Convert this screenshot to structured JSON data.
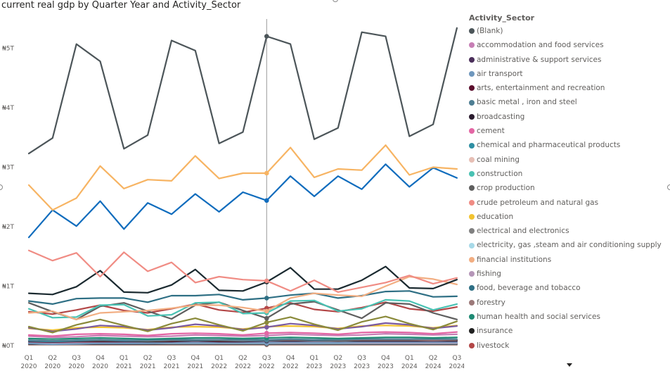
{
  "chart_data": {
    "type": "line",
    "title": "current real gdp by Quarter Year and Activity_Sector",
    "legend_title": "Activity_Sector",
    "legend_position": "right",
    "grid": false,
    "ylim": [
      0,
      5.5
    ],
    "y_ticks": [
      {
        "value": 0,
        "label": "₦0T"
      },
      {
        "value": 1,
        "label": "₦1T"
      },
      {
        "value": 2,
        "label": "₦2T"
      },
      {
        "value": 3,
        "label": "₦3T"
      },
      {
        "value": 4,
        "label": "₦4T"
      },
      {
        "value": 5,
        "label": "₦5T"
      }
    ],
    "categories": [
      {
        "q": "Q1",
        "y": "2020"
      },
      {
        "q": "Q2",
        "y": "2020"
      },
      {
        "q": "Q3",
        "y": "2020"
      },
      {
        "q": "Q4",
        "y": "2020"
      },
      {
        "q": "Q1",
        "y": "2021"
      },
      {
        "q": "Q2",
        "y": "2021"
      },
      {
        "q": "Q3",
        "y": "2021"
      },
      {
        "q": "Q4",
        "y": "2021"
      },
      {
        "q": "Q1",
        "y": "2022"
      },
      {
        "q": "Q2",
        "y": "2022"
      },
      {
        "q": "Q3",
        "y": "2022"
      },
      {
        "q": "Q4",
        "y": "2022"
      },
      {
        "q": "Q1",
        "y": "2023"
      },
      {
        "q": "Q2",
        "y": "2023"
      },
      {
        "q": "Q3",
        "y": "2023"
      },
      {
        "q": "Q4",
        "y": "2023"
      },
      {
        "q": "Q1",
        "y": "2024"
      },
      {
        "q": "Q2",
        "y": "2024"
      },
      {
        "q": "Q3",
        "y": "2024"
      }
    ],
    "highlight_index": 10,
    "series": [
      {
        "name": "(Blank)",
        "color": "#4C5559",
        "values": [
          3.23,
          3.49,
          5.07,
          4.78,
          3.31,
          3.54,
          5.13,
          4.96,
          3.4,
          3.59,
          5.2,
          5.07,
          3.47,
          3.66,
          5.27,
          5.2,
          3.52,
          3.72,
          5.34
        ]
      },
      {
        "name": "accommodation and food services",
        "color": "#C77EB5",
        "values": [
          0.16,
          0.14,
          0.15,
          0.17,
          0.16,
          0.15,
          0.16,
          0.18,
          0.17,
          0.16,
          0.17,
          0.19,
          0.18,
          0.17,
          0.18,
          0.2,
          0.19,
          0.18,
          0.19
        ]
      },
      {
        "name": "administrative & support services",
        "color": "#4B2F5A",
        "values": [
          0.05,
          0.05,
          0.05,
          0.05,
          0.05,
          0.05,
          0.05,
          0.05,
          0.05,
          0.05,
          0.05,
          0.05,
          0.05,
          0.05,
          0.05,
          0.05,
          0.05,
          0.05,
          0.05
        ]
      },
      {
        "name": "air transport",
        "color": "#6F97BD",
        "values": [
          0.04,
          0.02,
          0.03,
          0.04,
          0.04,
          0.04,
          0.05,
          0.05,
          0.05,
          0.05,
          0.05,
          0.06,
          0.05,
          0.05,
          0.06,
          0.06,
          0.06,
          0.06,
          0.06
        ]
      },
      {
        "name": "arts, entertainment and recreation",
        "color": "#5B0E2D",
        "values": [
          0.07,
          0.06,
          0.07,
          0.07,
          0.07,
          0.07,
          0.07,
          0.08,
          0.07,
          0.07,
          0.08,
          0.08,
          0.08,
          0.08,
          0.08,
          0.08,
          0.08,
          0.08,
          0.08
        ]
      },
      {
        "name": "basic metal , iron and steel",
        "color": "#4E7E93",
        "values": [
          0.09,
          0.08,
          0.09,
          0.1,
          0.09,
          0.09,
          0.1,
          0.1,
          0.1,
          0.1,
          0.1,
          0.11,
          0.1,
          0.1,
          0.11,
          0.11,
          0.11,
          0.11,
          0.11
        ]
      },
      {
        "name": "broadcasting",
        "color": "#2A1C2E",
        "values": [
          0.03,
          0.03,
          0.03,
          0.03,
          0.03,
          0.03,
          0.03,
          0.03,
          0.03,
          0.03,
          0.03,
          0.03,
          0.03,
          0.03,
          0.03,
          0.03,
          0.03,
          0.03,
          0.03
        ]
      },
      {
        "name": "cement",
        "color": "#E366A4",
        "values": [
          0.18,
          0.16,
          0.19,
          0.2,
          0.19,
          0.17,
          0.2,
          0.21,
          0.2,
          0.18,
          0.21,
          0.22,
          0.21,
          0.19,
          0.22,
          0.23,
          0.22,
          0.2,
          0.23
        ]
      },
      {
        "name": "chemical and  pharmaceutical products",
        "color": "#2E8FA3",
        "values": [
          0.08,
          0.07,
          0.08,
          0.09,
          0.08,
          0.08,
          0.09,
          0.09,
          0.09,
          0.08,
          0.09,
          0.1,
          0.09,
          0.09,
          0.1,
          0.1,
          0.1,
          0.09,
          0.1
        ]
      },
      {
        "name": "coal mining",
        "color": "#E7BFB5",
        "values": [
          0.01,
          0.01,
          0.01,
          0.01,
          0.01,
          0.01,
          0.01,
          0.01,
          0.01,
          0.01,
          0.01,
          0.01,
          0.01,
          0.01,
          0.01,
          0.01,
          0.01,
          0.01,
          0.01
        ]
      },
      {
        "name": "construction",
        "color": "#49C2B3",
        "values": [
          0.62,
          0.47,
          0.48,
          0.68,
          0.69,
          0.5,
          0.52,
          0.72,
          0.73,
          0.54,
          0.55,
          0.75,
          0.76,
          0.58,
          0.62,
          0.77,
          0.75,
          0.6,
          0.7
        ]
      },
      {
        "name": "crop production",
        "color": "#5E5E5E",
        "values": [
          0.72,
          0.57,
          0.44,
          0.66,
          0.72,
          0.58,
          0.45,
          0.68,
          0.73,
          0.59,
          0.46,
          0.7,
          0.74,
          0.6,
          0.46,
          0.72,
          0.7,
          0.55,
          0.44
        ]
      },
      {
        "name": "crude petroleum and natural gas",
        "color": "#F08C84",
        "values": [
          1.6,
          1.43,
          1.56,
          1.16,
          1.57,
          1.25,
          1.4,
          1.06,
          1.16,
          1.11,
          1.09,
          0.92,
          1.1,
          0.9,
          0.98,
          1.06,
          1.18,
          1.04,
          1.14
        ]
      },
      {
        "name": "education",
        "color": "#F2C330",
        "values": [
          0.29,
          0.26,
          0.3,
          0.31,
          0.3,
          0.27,
          0.31,
          0.32,
          0.31,
          0.28,
          0.32,
          0.33,
          0.32,
          0.29,
          0.33,
          0.34,
          0.33,
          0.3,
          0.34
        ]
      },
      {
        "name": "electrical and electronics",
        "color": "#808080",
        "values": [
          0.02,
          0.02,
          0.02,
          0.02,
          0.02,
          0.02,
          0.02,
          0.02,
          0.02,
          0.02,
          0.02,
          0.02,
          0.02,
          0.02,
          0.02,
          0.02,
          0.02,
          0.02,
          0.02
        ]
      },
      {
        "name": "electricity, gas ,steam and air conditioning supply",
        "color": "#A7D9E8",
        "values": [
          0.04,
          0.04,
          0.04,
          0.04,
          0.04,
          0.04,
          0.04,
          0.04,
          0.04,
          0.04,
          0.04,
          0.04,
          0.04,
          0.04,
          0.04,
          0.04,
          0.04,
          0.04,
          0.04
        ]
      },
      {
        "name": "financial institutions",
        "color": "#F2AE82",
        "values": [
          0.55,
          0.58,
          0.44,
          0.55,
          0.57,
          0.59,
          0.63,
          0.68,
          0.68,
          0.64,
          0.58,
          0.8,
          0.88,
          0.85,
          0.83,
          1.0,
          1.16,
          1.12,
          1.03
        ]
      },
      {
        "name": "fishing",
        "color": "#B596B8",
        "values": [
          0.05,
          0.05,
          0.05,
          0.05,
          0.05,
          0.05,
          0.05,
          0.05,
          0.05,
          0.05,
          0.05,
          0.05,
          0.05,
          0.05,
          0.05,
          0.05,
          0.05,
          0.05,
          0.05
        ]
      },
      {
        "name": "food, beverage and tobacco",
        "color": "#2E6F84",
        "values": [
          0.75,
          0.7,
          0.79,
          0.8,
          0.8,
          0.73,
          0.84,
          0.84,
          0.86,
          0.77,
          0.8,
          0.85,
          0.88,
          0.8,
          0.84,
          0.91,
          0.92,
          0.82,
          0.83
        ]
      },
      {
        "name": "forestry",
        "color": "#9C7979",
        "values": [
          0.09,
          0.08,
          0.09,
          0.09,
          0.09,
          0.08,
          0.09,
          0.1,
          0.09,
          0.09,
          0.1,
          0.1,
          0.1,
          0.09,
          0.1,
          0.1,
          0.1,
          0.09,
          0.1
        ]
      },
      {
        "name": "human health and social services",
        "color": "#1E8A73",
        "values": [
          0.12,
          0.11,
          0.12,
          0.13,
          0.12,
          0.11,
          0.12,
          0.13,
          0.13,
          0.12,
          0.13,
          0.14,
          0.13,
          0.12,
          0.13,
          0.14,
          0.14,
          0.13,
          0.14
        ]
      },
      {
        "name": "insurance",
        "color": "#212121",
        "values": [
          0.08,
          0.07,
          0.08,
          0.08,
          0.08,
          0.07,
          0.08,
          0.09,
          0.08,
          0.08,
          0.09,
          0.09,
          0.09,
          0.08,
          0.09,
          0.09,
          0.09,
          0.09,
          0.09
        ]
      },
      {
        "name": "livestock",
        "color": "#B34747",
        "values": [
          0.57,
          0.53,
          0.6,
          0.68,
          0.59,
          0.55,
          0.62,
          0.7,
          0.6,
          0.56,
          0.63,
          0.72,
          0.61,
          0.57,
          0.64,
          0.73,
          0.62,
          0.58,
          0.65
        ]
      }
    ],
    "unlisted_series": [
      {
        "color": "#0F6CBD",
        "values": [
          1.82,
          2.28,
          2.01,
          2.43,
          1.96,
          2.4,
          2.21,
          2.55,
          2.25,
          2.58,
          2.44,
          2.85,
          2.51,
          2.85,
          2.63,
          3.05,
          2.67,
          2.99,
          2.82
        ]
      },
      {
        "color": "#F7B463",
        "values": [
          2.7,
          2.28,
          2.48,
          3.02,
          2.64,
          2.79,
          2.77,
          3.19,
          2.81,
          2.9,
          2.9,
          3.33,
          2.83,
          2.97,
          2.95,
          3.37,
          2.87,
          3.0,
          2.97
        ]
      },
      {
        "color": "#1B2A30",
        "values": [
          0.88,
          0.86,
          0.99,
          1.26,
          0.9,
          0.89,
          1.02,
          1.28,
          0.93,
          0.92,
          1.07,
          1.31,
          0.95,
          0.95,
          1.1,
          1.33,
          0.97,
          0.96,
          1.11
        ]
      },
      {
        "color": "#8A8A3A",
        "values": [
          0.32,
          0.22,
          0.35,
          0.44,
          0.34,
          0.24,
          0.37,
          0.46,
          0.35,
          0.25,
          0.39,
          0.48,
          0.36,
          0.26,
          0.4,
          0.49,
          0.37,
          0.27,
          0.41
        ]
      },
      {
        "color": "#7A5AA0",
        "values": [
          0.3,
          0.24,
          0.28,
          0.34,
          0.32,
          0.26,
          0.3,
          0.36,
          0.33,
          0.27,
          0.31,
          0.37,
          0.34,
          0.28,
          0.32,
          0.38,
          0.35,
          0.29,
          0.33
        ]
      }
    ]
  }
}
